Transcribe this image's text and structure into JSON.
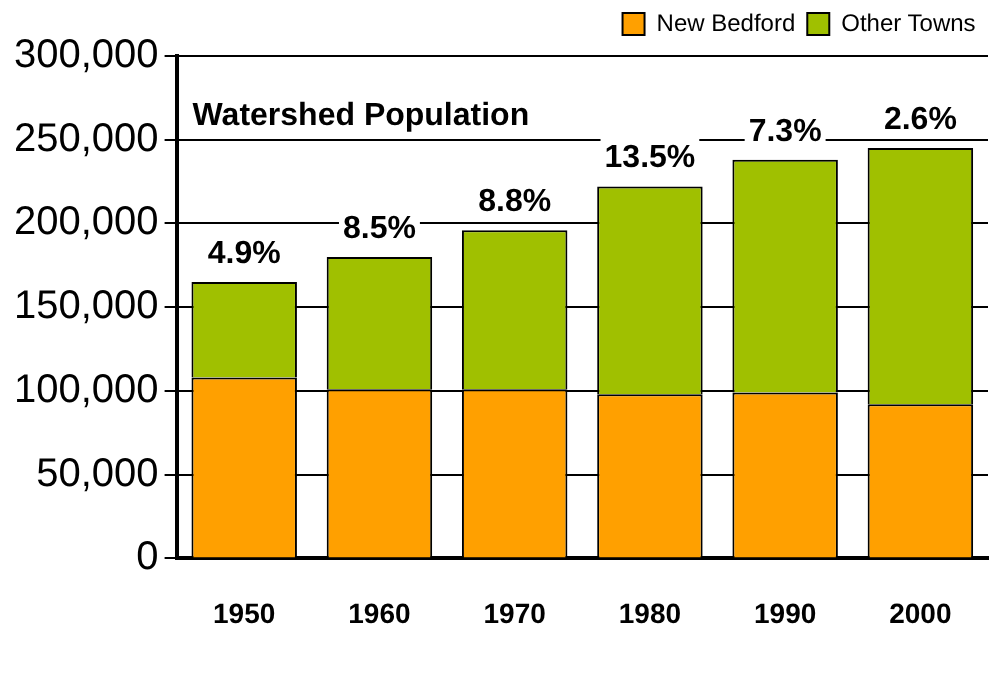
{
  "chart_data": {
    "type": "bar",
    "title": "Watershed Population",
    "stacked": true,
    "categories": [
      "1950",
      "1960",
      "1970",
      "1980",
      "1990",
      "2000"
    ],
    "series": [
      {
        "name": "New Bedford",
        "color": "#ffa000",
        "values": [
          108000,
          101000,
          101000,
          98000,
          99000,
          92000
        ]
      },
      {
        "name": "Other Towns",
        "color": "#a0c000",
        "values": [
          57000,
          79000,
          95000,
          124000,
          139000,
          153000
        ]
      }
    ],
    "ylim": [
      0,
      300000
    ],
    "yticks": [
      {
        "value": 0,
        "label": "0"
      },
      {
        "value": 50000,
        "label": "50,000"
      },
      {
        "value": 100000,
        "label": "100,000"
      },
      {
        "value": 150000,
        "label": "150,000"
      },
      {
        "value": 200000,
        "label": "200,000"
      },
      {
        "value": 250000,
        "label": "250,000"
      },
      {
        "value": 300000,
        "label": "300,000"
      }
    ],
    "grid": "y",
    "legend": "top right",
    "annotations": [
      {
        "text": "4.9%",
        "x": "1950",
        "y": 165000
      },
      {
        "text": "8.5%",
        "x": "1960",
        "y": 180000
      },
      {
        "text": "8.8%",
        "x": "1970",
        "y": 196000
      },
      {
        "text": "13.5%",
        "x": "1980",
        "y": 222000
      },
      {
        "text": "7.3%",
        "x": "1990",
        "y": 238000
      },
      {
        "text": "2.6%",
        "x": "2000",
        "y": 245000
      }
    ]
  }
}
